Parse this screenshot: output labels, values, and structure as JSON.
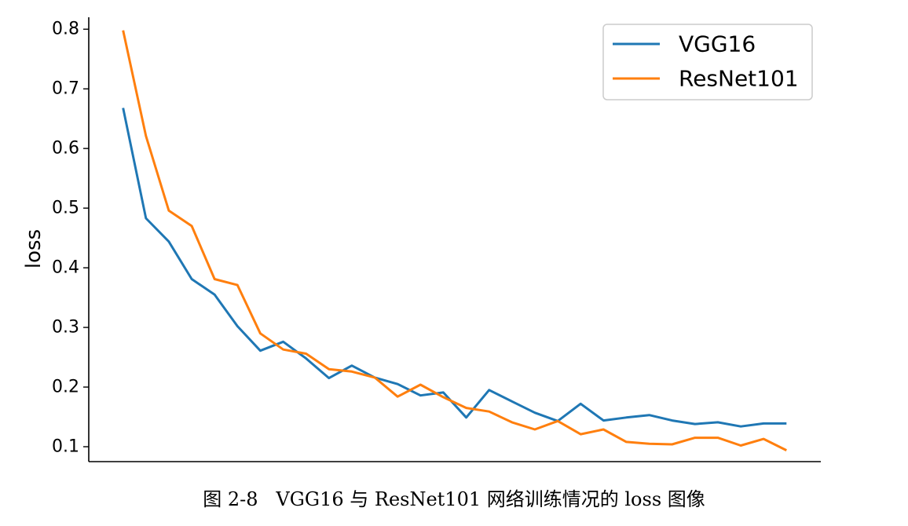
{
  "caption": "图 2-8   VGG16 与 ResNet101 网络训练情况的 loss 图像",
  "chart_data": {
    "type": "line",
    "title": "",
    "xlabel": "",
    "ylabel": "loss",
    "x": [
      1,
      2,
      3,
      4,
      5,
      6,
      7,
      8,
      9,
      10,
      11,
      12,
      13,
      14,
      15,
      16,
      17,
      18,
      19,
      20,
      21,
      22,
      23,
      24,
      25,
      26,
      27,
      28,
      29,
      30
    ],
    "xlim": [
      -0.5,
      31.5
    ],
    "ylim": [
      0.075,
      0.82
    ],
    "yticks": [
      0.1,
      0.2,
      0.3,
      0.4,
      0.5,
      0.6,
      0.7,
      0.8
    ],
    "ytick_labels": [
      "0.1",
      "0.2",
      "0.3",
      "0.4",
      "0.5",
      "0.6",
      "0.7",
      "0.8"
    ],
    "grid": false,
    "legend_position": "top-right",
    "series": [
      {
        "name": "VGG16",
        "color": "#1f77b4",
        "values": [
          0.668,
          0.483,
          0.444,
          0.381,
          0.355,
          0.302,
          0.261,
          0.276,
          0.248,
          0.215,
          0.236,
          0.216,
          0.205,
          0.186,
          0.191,
          0.149,
          0.195,
          0.176,
          0.157,
          0.143,
          0.172,
          0.144,
          0.149,
          0.153,
          0.144,
          0.138,
          0.141,
          0.134,
          0.139,
          0.139
        ]
      },
      {
        "name": "ResNet101",
        "color": "#ff7f0e",
        "values": [
          0.798,
          0.621,
          0.496,
          0.47,
          0.381,
          0.371,
          0.29,
          0.263,
          0.256,
          0.23,
          0.226,
          0.216,
          0.184,
          0.204,
          0.183,
          0.165,
          0.159,
          0.141,
          0.129,
          0.143,
          0.121,
          0.129,
          0.108,
          0.105,
          0.104,
          0.115,
          0.115,
          0.102,
          0.113,
          0.094
        ]
      }
    ]
  }
}
